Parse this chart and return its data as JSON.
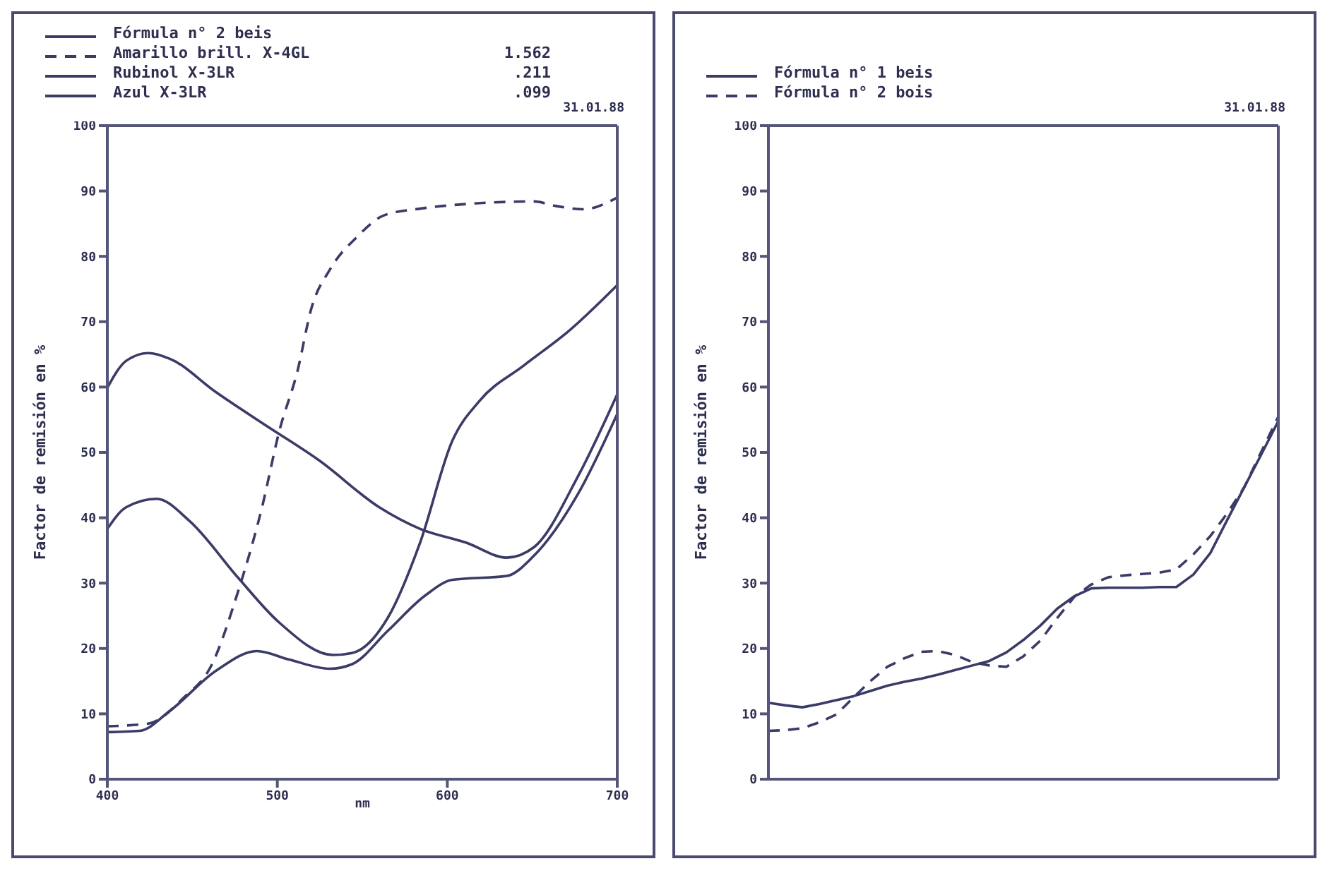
{
  "chart_data": [
    {
      "type": "line",
      "ylabel": "Factor de remisión en %",
      "xlabel": "nm",
      "xlim": [
        400,
        700
      ],
      "xticks": [
        400,
        500,
        600,
        700
      ],
      "ylim": [
        0,
        100
      ],
      "yticks": [
        0,
        10,
        20,
        30,
        40,
        50,
        60,
        70,
        80,
        90,
        100
      ],
      "grid": false,
      "legend": "top",
      "marker": "none",
      "annotations": [
        "31.01.88",
        "1.562",
        ".211",
        ".099"
      ],
      "series": [
        {
          "name": "Fórmula n° 2 beis",
          "color": "#3b3b68",
          "line_style": "solid",
          "x": [
            400,
            419,
            437,
            464,
            488,
            507,
            531,
            544,
            565,
            587,
            603,
            635,
            651,
            677,
            700
          ],
          "values": [
            7.2,
            7.4,
            10.5,
            16.6,
            19.6,
            18.3,
            16.9,
            17.6,
            22.7,
            28.1,
            30.5,
            31.1,
            34.2,
            43.7,
            55.9
          ]
        },
        {
          "name": "Amarillo brill. X-4GL",
          "color": "#3b3b68",
          "line_style": "dashed",
          "x": [
            400,
            424,
            445,
            461,
            477,
            491,
            501,
            512,
            520,
            531,
            547,
            563,
            584,
            611,
            651,
            664,
            680,
            700
          ],
          "values": [
            8.1,
            8.5,
            12.5,
            17.3,
            28.8,
            41.6,
            53.1,
            62.6,
            72,
            78,
            83,
            86.3,
            87.3,
            88,
            88.4,
            87.7,
            87.2,
            89
          ]
        },
        {
          "name": "Rubinol X-3LR",
          "color": "#3b3b68",
          "line_style": "solid",
          "x": [
            400,
            411,
            429,
            448,
            477,
            501,
            533,
            544,
            565,
            584,
            603,
            619,
            645,
            672,
            700
          ],
          "values": [
            38.3,
            41.6,
            42.9,
            39.6,
            30.8,
            24,
            19,
            19.3,
            24.7,
            36.2,
            51.8,
            57.9,
            63.3,
            68.7,
            75.6
          ]
        },
        {
          "name": "Azul X-3LR",
          "color": "#3b3b68",
          "line_style": "solid",
          "x": [
            400,
            411,
            424,
            437,
            464,
            491,
            525,
            560,
            584,
            611,
            635,
            651,
            677,
            700
          ],
          "values": [
            59.9,
            64,
            65.2,
            64.3,
            59.2,
            54.5,
            48.7,
            41.6,
            38.3,
            36.2,
            33.9,
            35.5,
            46.4,
            58.9
          ]
        }
      ]
    },
    {
      "type": "line",
      "ylabel": "Factor de remisión en %",
      "categories": [
        null,
        null,
        null,
        null,
        null,
        null,
        null,
        null,
        null,
        null,
        null,
        null,
        null,
        null,
        null,
        null,
        null,
        null,
        null,
        null,
        null,
        null,
        null,
        null,
        null,
        null,
        null,
        null,
        null,
        null,
        null
      ],
      "ylim": [
        0,
        100
      ],
      "yticks": [
        0,
        10,
        20,
        30,
        40,
        50,
        60,
        70,
        80,
        90,
        100
      ],
      "grid": false,
      "legend": "top",
      "marker": "none",
      "tick_labels": "y",
      "annotations": [
        "31.01.88"
      ],
      "series": [
        {
          "name": "Fórmula n° 1 beis",
          "color": "#3b3b68",
          "line_style": "solid",
          "values": [
            11.7,
            11.3,
            11.0,
            11.5,
            12.1,
            12.7,
            13.5,
            14.3,
            14.9,
            15.4,
            16.0,
            16.7,
            17.4,
            18.1,
            19.4,
            21.3,
            23.5,
            26.1,
            28.0,
            29.2,
            29.3,
            29.3,
            29.3,
            29.4,
            29.4,
            31.3,
            34.6,
            39.7,
            44.7,
            49.7,
            54.8
          ]
        },
        {
          "name": "Fórmula n° 2 bois",
          "color": "#3b3b68",
          "line_style": "dashed",
          "values": [
            7.4,
            7.5,
            7.8,
            8.7,
            9.9,
            12.5,
            15.0,
            17.2,
            18.5,
            19.5,
            19.6,
            19.0,
            17.9,
            17.4,
            17.2,
            18.8,
            21.2,
            24.7,
            27.9,
            29.8,
            30.9,
            31.2,
            31.4,
            31.6,
            32.1,
            34.4,
            37.2,
            40.7,
            44.7,
            50.1,
            55.5
          ]
        }
      ]
    }
  ]
}
